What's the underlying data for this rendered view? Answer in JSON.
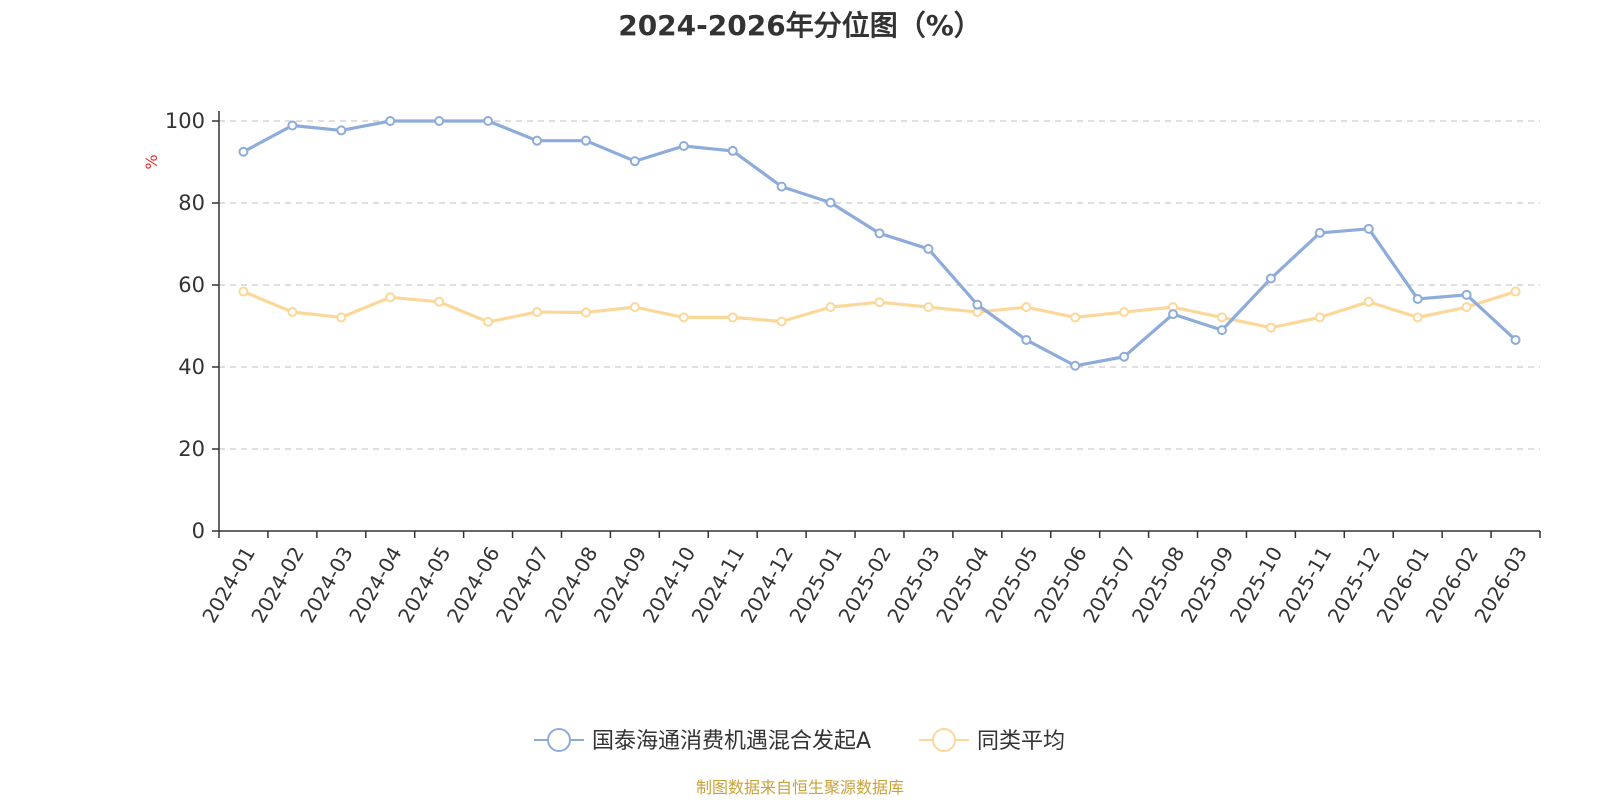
{
  "title": "2024-2026年分位图（%）",
  "source": "制图数据来自恒生聚源数据库",
  "chart_data": {
    "type": "line",
    "title": "2024-2026年分位图（%）",
    "ylabel": "%",
    "ylim": [
      0,
      100
    ],
    "yticks": [
      0,
      20,
      40,
      60,
      80,
      100
    ],
    "grid": true,
    "legend_position": "bottom",
    "x": [
      "2024-01",
      "2024-02",
      "2024-03",
      "2024-04",
      "2024-05",
      "2024-06",
      "2024-07",
      "2024-08",
      "2024-09",
      "2024-10",
      "2024-11",
      "2024-12",
      "2025-01",
      "2025-02",
      "2025-03",
      "2025-04",
      "2025-05",
      "2025-06",
      "2025-07",
      "2025-08",
      "2025-09",
      "2025-10",
      "2025-11",
      "2025-12",
      "2026-01",
      "2026-02",
      "2026-03"
    ],
    "series": [
      {
        "name": "国泰海通消费机遇混合发起A",
        "color": "#8eacd9",
        "values": [
          92.5,
          98.9,
          97.7,
          100,
          100,
          100,
          95.2,
          95.2,
          90.2,
          93.9,
          92.7,
          84.0,
          80.1,
          72.6,
          68.8,
          55.2,
          46.6,
          40.3,
          42.5,
          52.9,
          49.0,
          61.6,
          72.7,
          73.7,
          56.6,
          57.6,
          46.6
        ]
      },
      {
        "name": "同类平均",
        "color": "#fbd899",
        "values": [
          58.4,
          53.4,
          52.1,
          57.0,
          55.9,
          51.0,
          53.4,
          53.3,
          54.6,
          52.1,
          52.1,
          51.1,
          54.6,
          55.8,
          54.6,
          53.4,
          54.6,
          52.1,
          53.4,
          54.6,
          52.1,
          49.6,
          52.1,
          55.9,
          52.1,
          54.6,
          58.4
        ]
      }
    ]
  }
}
